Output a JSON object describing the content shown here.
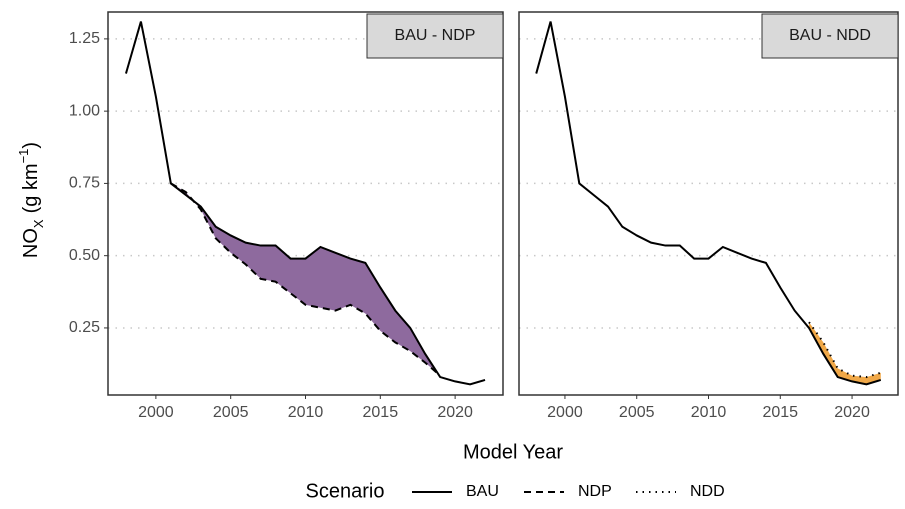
{
  "ylabel": {
    "base": "NO",
    "sub": "X",
    "unit": "(g km",
    "sup": "−1",
    "close": ")"
  },
  "xlabel": "Model Year",
  "legend_title": "Scenario",
  "chart_data": [
    {
      "type": "line",
      "title": "BAU - NDP",
      "x": [
        1998,
        1999,
        2000,
        2001,
        2002,
        2003,
        2004,
        2005,
        2006,
        2007,
        2008,
        2009,
        2010,
        2011,
        2012,
        2013,
        2014,
        2015,
        2016,
        2017,
        2018,
        2019,
        2020,
        2021,
        2022
      ],
      "series": [
        {
          "name": "BAU",
          "color": "#000000",
          "linestyle": "solid",
          "values": [
            1.13,
            1.31,
            1.05,
            0.75,
            0.71,
            0.67,
            0.6,
            0.57,
            0.545,
            0.535,
            0.535,
            0.49,
            0.49,
            0.53,
            0.51,
            0.49,
            0.475,
            0.39,
            0.31,
            0.25,
            0.16,
            0.08,
            0.065,
            0.055,
            0.07
          ]
        },
        {
          "name": "NDP",
          "color": "#000000",
          "linestyle": "dashed",
          "values": [
            null,
            null,
            null,
            0.75,
            0.72,
            0.66,
            0.56,
            0.51,
            0.47,
            0.42,
            0.41,
            0.37,
            0.33,
            0.32,
            0.31,
            0.33,
            0.3,
            0.24,
            0.2,
            0.17,
            0.13,
            0.085,
            null,
            null,
            null
          ]
        }
      ],
      "fill_color": "#8e6a9e",
      "xlim": [
        1996.8,
        2023.2
      ],
      "xticks": [
        2000,
        2005,
        2010,
        2015,
        2020
      ],
      "ylim": [
        0.018,
        1.343
      ],
      "yticks": [
        {
          "value": 0.25,
          "label": "0.25"
        },
        {
          "value": 0.5,
          "label": "0.50"
        },
        {
          "value": 0.75,
          "label": "0.75"
        },
        {
          "value": 1,
          "label": "1.00"
        },
        {
          "value": 1.25,
          "label": "1.25"
        }
      ],
      "grid": true
    },
    {
      "type": "line",
      "title": "BAU - NDD",
      "x": [
        1998,
        1999,
        2000,
        2001,
        2002,
        2003,
        2004,
        2005,
        2006,
        2007,
        2008,
        2009,
        2010,
        2011,
        2012,
        2013,
        2014,
        2015,
        2016,
        2017,
        2018,
        2019,
        2020,
        2021,
        2022
      ],
      "series": [
        {
          "name": "BAU",
          "color": "#000000",
          "linestyle": "solid",
          "values": [
            1.13,
            1.31,
            1.05,
            0.75,
            0.71,
            0.67,
            0.6,
            0.57,
            0.545,
            0.535,
            0.535,
            0.49,
            0.49,
            0.53,
            0.51,
            0.49,
            0.475,
            0.39,
            0.31,
            0.25,
            0.16,
            0.08,
            0.065,
            0.055,
            0.07
          ]
        },
        {
          "name": "NDD",
          "color": "#000000",
          "linestyle": "dotted",
          "values": [
            null,
            null,
            null,
            null,
            null,
            null,
            null,
            null,
            null,
            null,
            null,
            null,
            null,
            null,
            null,
            null,
            null,
            null,
            null,
            0.27,
            0.2,
            0.11,
            0.085,
            0.08,
            0.095
          ]
        }
      ],
      "fill_color": "#f0a848",
      "xlim": [
        1996.8,
        2023.2
      ],
      "xticks": [
        2000,
        2005,
        2010,
        2015,
        2020
      ],
      "ylim": [
        0.018,
        1.343
      ],
      "grid": true
    }
  ]
}
